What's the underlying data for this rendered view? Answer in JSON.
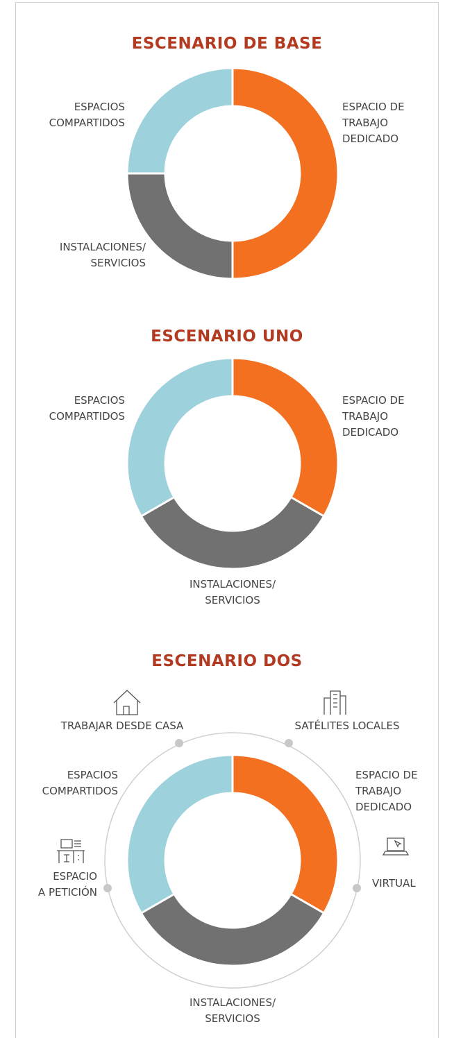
{
  "chart_data": [
    {
      "type": "donut",
      "title": "ESCENARIO DE BASE",
      "categories": [
        "ESPACIO DE\nTRABAJO\nDEDICADO",
        "INSTALACIONES/\nSERVICIOS",
        "ESPACIOS\nCOMPARTIDOS"
      ],
      "values": [
        50,
        25,
        25
      ],
      "colors": [
        "#f37021",
        "#717171",
        "#9dd1dc"
      ]
    },
    {
      "type": "donut",
      "title": "ESCENARIO UNO",
      "categories": [
        "ESPACIO DE\nTRABAJO\nDEDICADO",
        "INSTALACIONES/\nSERVICIOS",
        "ESPACIOS\nCOMPARTIDOS"
      ],
      "values": [
        33.3,
        33.3,
        33.3
      ],
      "colors": [
        "#f37021",
        "#717171",
        "#9dd1dc"
      ]
    },
    {
      "type": "donut",
      "title": "ESCENARIO DOS",
      "categories": [
        "ESPACIO DE\nTRABAJO\nDEDICADO",
        "INSTALACIONES/\nSERVICIOS",
        "ESPACIOS\nCOMPARTIDOS"
      ],
      "values": [
        33.3,
        33.3,
        33.3
      ],
      "colors": [
        "#f37021",
        "#717171",
        "#9dd1dc"
      ],
      "outer_labels": [
        "SATÉLITES LOCALES",
        "VIRTUAL",
        "ESPACIO\nA PETICIÓN",
        "TRABAJAR DESDE CASA"
      ]
    }
  ]
}
